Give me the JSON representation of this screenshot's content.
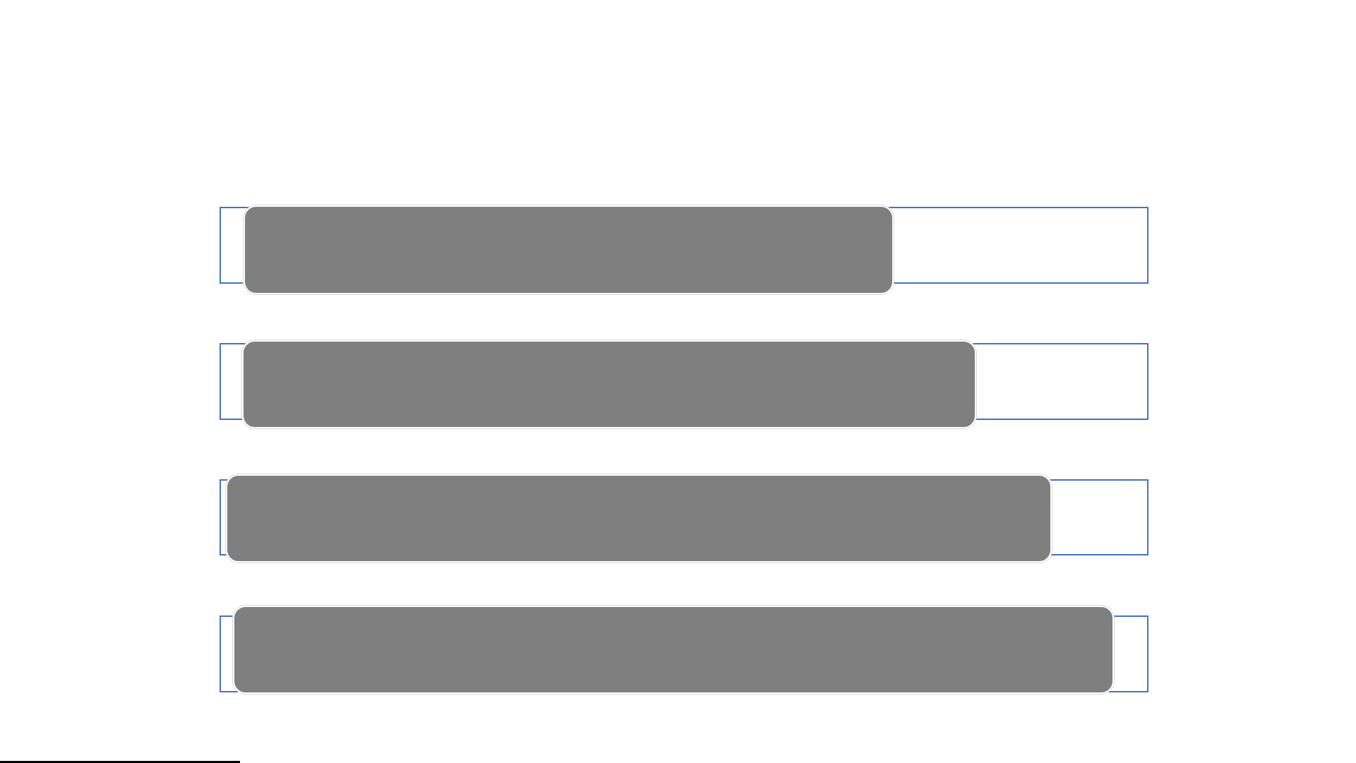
{
  "colors": {
    "frame": "#4472c4",
    "bar": "#7f7f7f",
    "background": "#ffffff"
  },
  "rows": [
    {
      "label": ""
    },
    {
      "label": ""
    },
    {
      "label": ""
    },
    {
      "label": ""
    }
  ]
}
